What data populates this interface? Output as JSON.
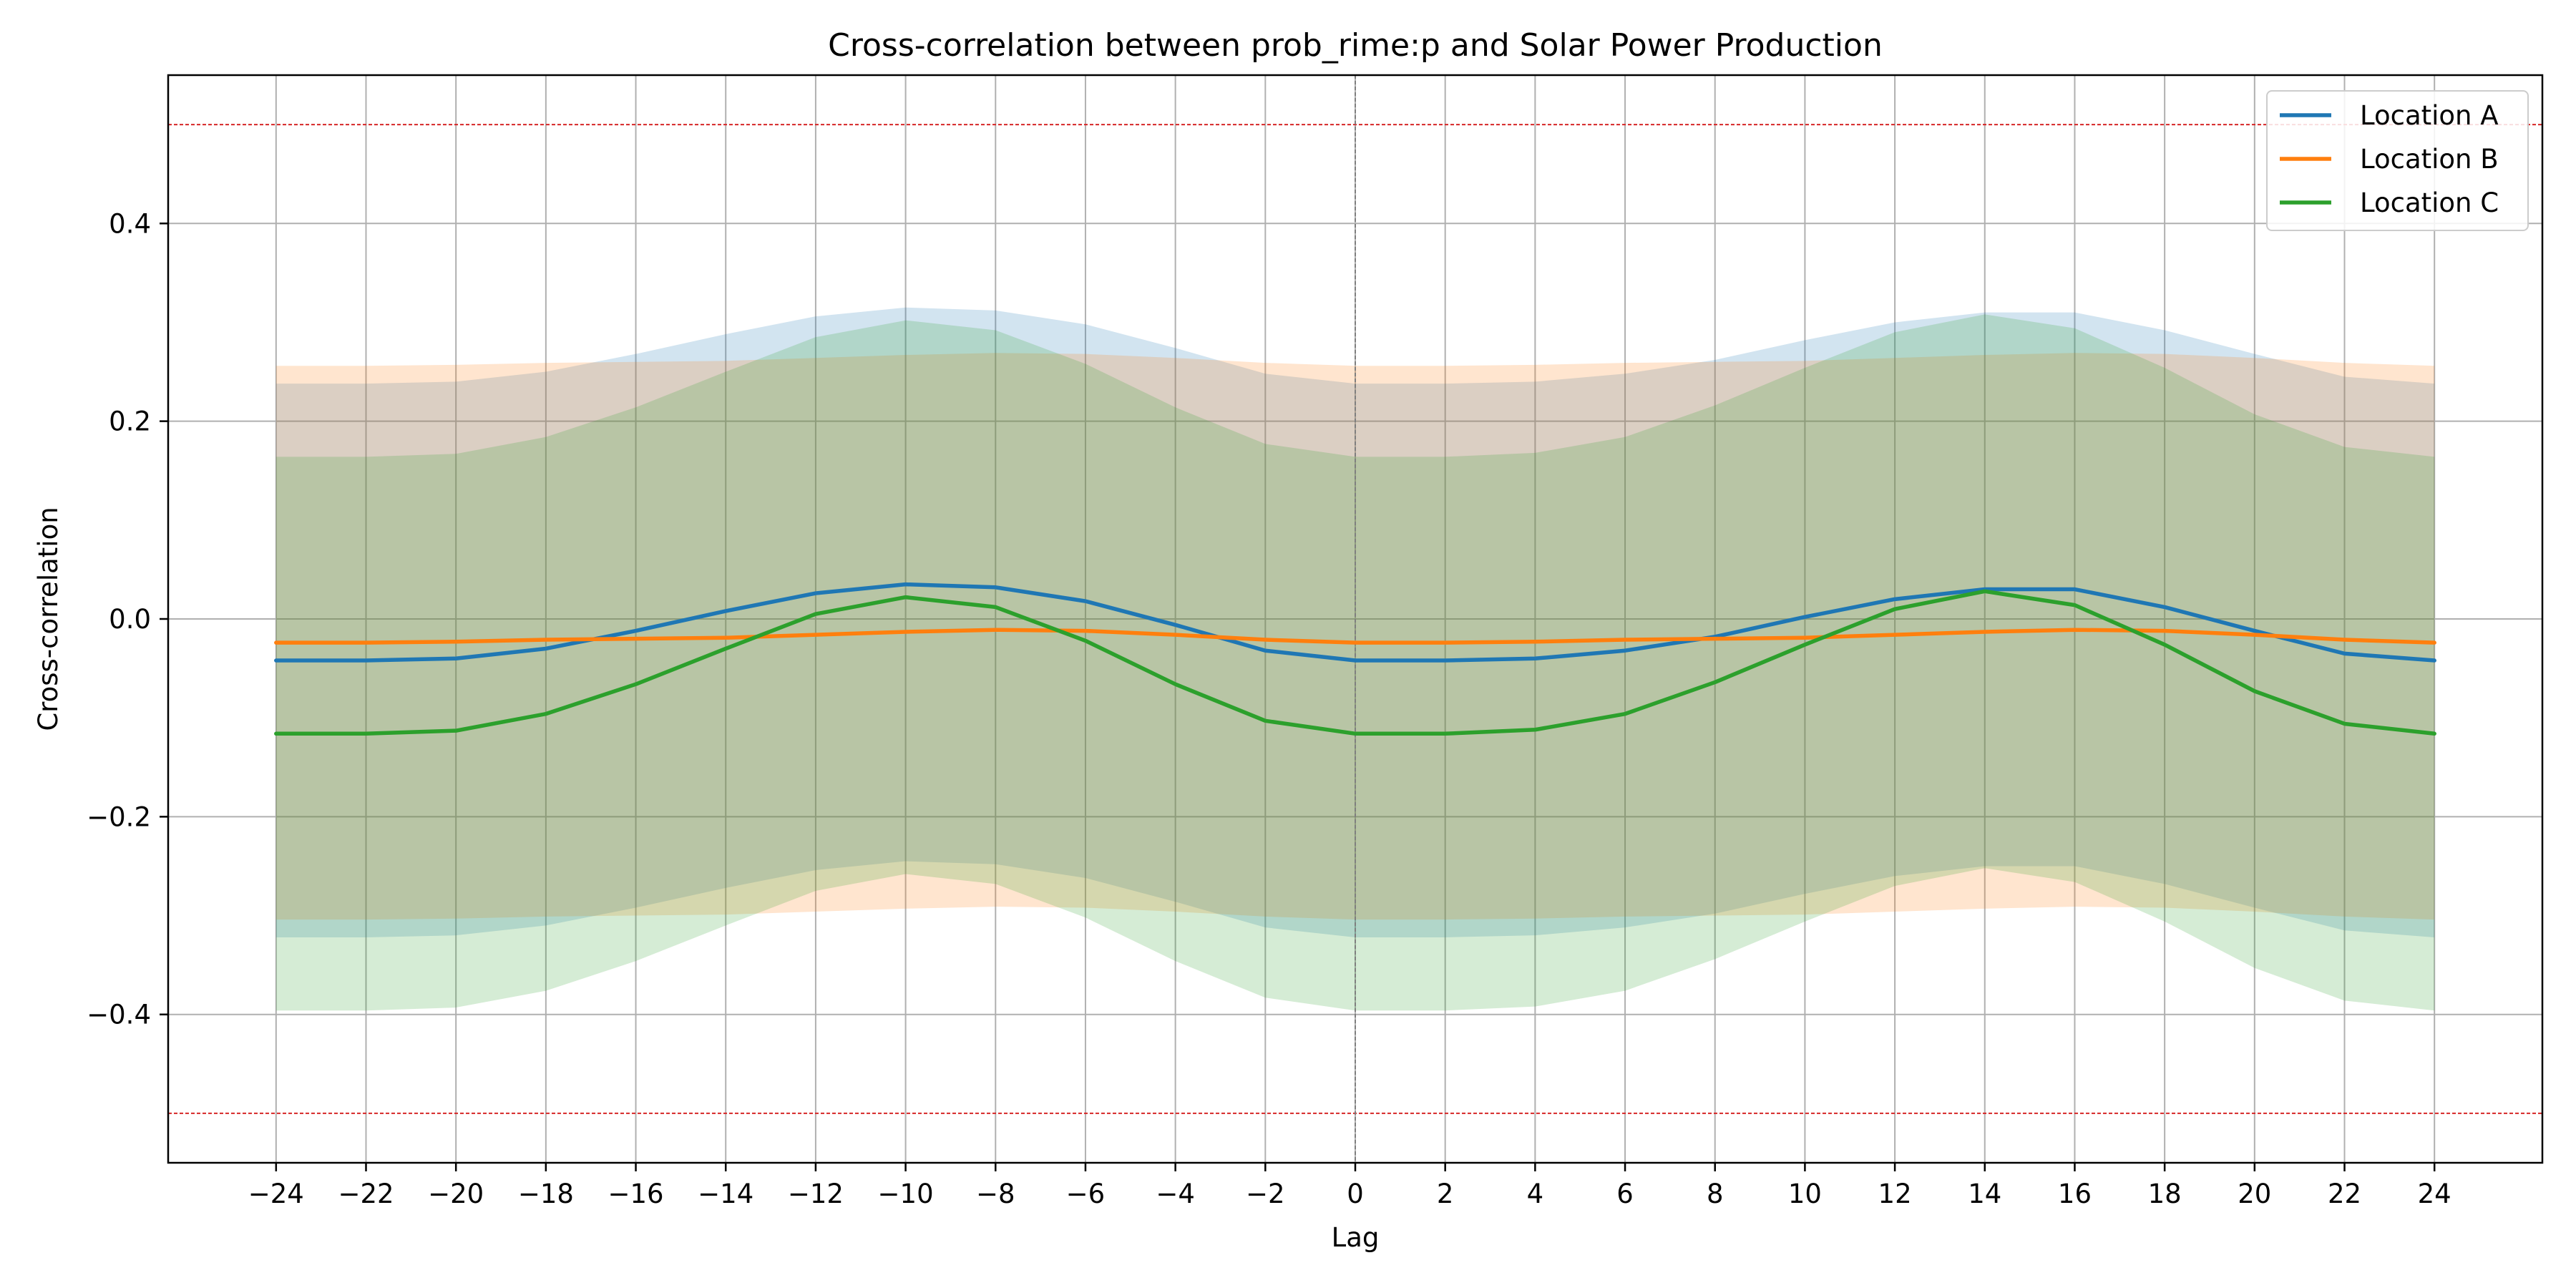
{
  "chart_data": {
    "type": "line",
    "title": "Cross-correlation between prob_rime:p and Solar Power Production",
    "xlabel": "Lag",
    "ylabel": "Cross-correlation",
    "xlim": [
      -26.4,
      26.4
    ],
    "ylim": [
      -0.55,
      0.55
    ],
    "xticks": [
      -24,
      -22,
      -20,
      -18,
      -16,
      -14,
      -12,
      -10,
      -8,
      -6,
      -4,
      -2,
      0,
      2,
      4,
      6,
      8,
      10,
      12,
      14,
      16,
      18,
      20,
      22,
      24
    ],
    "yticks": [
      -0.4,
      -0.2,
      0.0,
      0.2,
      0.4
    ],
    "ytick_labels": [
      "−0.4",
      "−0.2",
      "0.0",
      "0.2",
      "0.4"
    ],
    "xtick_labels": [
      "−24",
      "−22",
      "−20",
      "−18",
      "−16",
      "−14",
      "−12",
      "−10",
      "−8",
      "−6",
      "−4",
      "−2",
      "0",
      "2",
      "4",
      "6",
      "8",
      "10",
      "12",
      "14",
      "16",
      "18",
      "20",
      "22",
      "24"
    ],
    "grid": true,
    "legend_position": "top-right",
    "reference_lines": {
      "horizontal": [
        0.5,
        -0.5
      ],
      "horizontal_color": "#d62728",
      "vertical": [
        0
      ],
      "vertical_color": "#7f7f7f"
    },
    "x": [
      -24,
      -22,
      -20,
      -18,
      -16,
      -14,
      -12,
      -10,
      -8,
      -6,
      -4,
      -2,
      0,
      2,
      4,
      6,
      8,
      10,
      12,
      14,
      16,
      18,
      20,
      22,
      24
    ],
    "series": [
      {
        "name": "Location A",
        "color": "#1f77b4",
        "values": [
          -0.042,
          -0.042,
          -0.04,
          -0.03,
          -0.012,
          0.008,
          0.026,
          0.035,
          0.032,
          0.018,
          -0.006,
          -0.032,
          -0.042,
          -0.042,
          -0.04,
          -0.032,
          -0.018,
          0.002,
          0.02,
          0.03,
          0.03,
          0.012,
          -0.012,
          -0.035,
          -0.042
        ],
        "band_upper": [
          0.238,
          0.238,
          0.24,
          0.25,
          0.268,
          0.288,
          0.306,
          0.315,
          0.312,
          0.298,
          0.274,
          0.248,
          0.238,
          0.238,
          0.24,
          0.248,
          0.262,
          0.282,
          0.3,
          0.31,
          0.31,
          0.292,
          0.268,
          0.245,
          0.238
        ],
        "band_lower": [
          -0.322,
          -0.322,
          -0.32,
          -0.31,
          -0.292,
          -0.272,
          -0.254,
          -0.245,
          -0.248,
          -0.262,
          -0.286,
          -0.312,
          -0.322,
          -0.322,
          -0.32,
          -0.312,
          -0.298,
          -0.278,
          -0.26,
          -0.25,
          -0.25,
          -0.268,
          -0.292,
          -0.315,
          -0.322
        ]
      },
      {
        "name": "Location B",
        "color": "#ff7f0e",
        "values": [
          -0.024,
          -0.024,
          -0.023,
          -0.021,
          -0.02,
          -0.019,
          -0.016,
          -0.013,
          -0.011,
          -0.012,
          -0.016,
          -0.021,
          -0.024,
          -0.024,
          -0.023,
          -0.021,
          -0.02,
          -0.019,
          -0.016,
          -0.013,
          -0.011,
          -0.012,
          -0.016,
          -0.021,
          -0.024
        ],
        "band_upper": [
          0.256,
          0.256,
          0.257,
          0.259,
          0.26,
          0.261,
          0.264,
          0.267,
          0.269,
          0.268,
          0.264,
          0.259,
          0.256,
          0.256,
          0.257,
          0.259,
          0.26,
          0.261,
          0.264,
          0.267,
          0.269,
          0.268,
          0.264,
          0.259,
          0.256
        ],
        "band_lower": [
          -0.304,
          -0.304,
          -0.303,
          -0.301,
          -0.3,
          -0.299,
          -0.296,
          -0.293,
          -0.291,
          -0.292,
          -0.296,
          -0.301,
          -0.304,
          -0.304,
          -0.303,
          -0.301,
          -0.3,
          -0.299,
          -0.296,
          -0.293,
          -0.291,
          -0.292,
          -0.296,
          -0.301,
          -0.304
        ]
      },
      {
        "name": "Location C",
        "color": "#2ca02c",
        "values": [
          -0.116,
          -0.116,
          -0.113,
          -0.096,
          -0.066,
          -0.03,
          0.005,
          0.022,
          0.012,
          -0.022,
          -0.066,
          -0.103,
          -0.116,
          -0.116,
          -0.112,
          -0.096,
          -0.064,
          -0.026,
          0.01,
          0.028,
          0.014,
          -0.026,
          -0.073,
          -0.106,
          -0.116
        ],
        "band_upper": [
          0.164,
          0.164,
          0.167,
          0.184,
          0.214,
          0.25,
          0.285,
          0.302,
          0.292,
          0.258,
          0.214,
          0.177,
          0.164,
          0.164,
          0.168,
          0.184,
          0.216,
          0.254,
          0.29,
          0.308,
          0.294,
          0.254,
          0.207,
          0.174,
          0.164
        ],
        "band_lower": [
          -0.396,
          -0.396,
          -0.393,
          -0.376,
          -0.346,
          -0.31,
          -0.275,
          -0.258,
          -0.268,
          -0.302,
          -0.346,
          -0.383,
          -0.396,
          -0.396,
          -0.392,
          -0.376,
          -0.344,
          -0.306,
          -0.27,
          -0.252,
          -0.266,
          -0.306,
          -0.353,
          -0.386,
          -0.396
        ]
      }
    ]
  }
}
